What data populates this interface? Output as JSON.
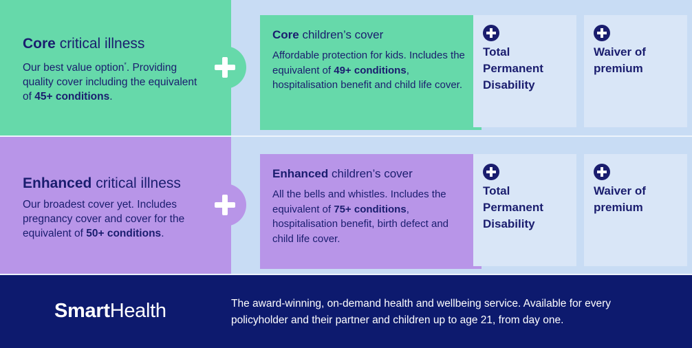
{
  "core": {
    "title_bold": "Core",
    "title_rest": " critical illness",
    "desc_1": "Our best value option",
    "desc_sup": "*",
    "desc_2": ". Providing quality cover including the equivalent of ",
    "desc_bold": "45+ conditions",
    "desc_end": "."
  },
  "core_children": {
    "title_bold": "Core",
    "title_rest": " children’s cover",
    "desc_1": "Affordable protection for kids. Includes the equivalent of ",
    "desc_bold": "49+ conditions",
    "desc_2": ", hospitalisation benefit and child life cover."
  },
  "enhanced": {
    "title_bold": "Enhanced",
    "title_rest": " critical illness",
    "desc_1": "Our broadest cover yet. Includes pregnancy cover and cover for the equivalent of ",
    "desc_bold": "50+ conditions",
    "desc_end": "."
  },
  "enhanced_children": {
    "title_bold": "Enhanced",
    "title_rest": " children’s cover",
    "desc_1": "All the bells and whistles. Includes the equivalent of ",
    "desc_bold": "75+ conditions",
    "desc_2": ", hospitalisation benefit, birth defect and child life cover."
  },
  "addons": {
    "tpd": "Total Permanent Disability",
    "waiver": "Waiver of premium"
  },
  "footer": {
    "logo_bold": "Smart",
    "logo_rest": "Health",
    "text": "The award-winning, on-demand health and wellbeing service. Available for every policyholder and their partner and children up to age 21, from day one."
  },
  "colors": {
    "green": "#66d9aa",
    "purple": "#b895e8",
    "light_blue": "#c8dcf4",
    "navy": "#0d1a6e",
    "text_navy": "#1a1d6e"
  }
}
